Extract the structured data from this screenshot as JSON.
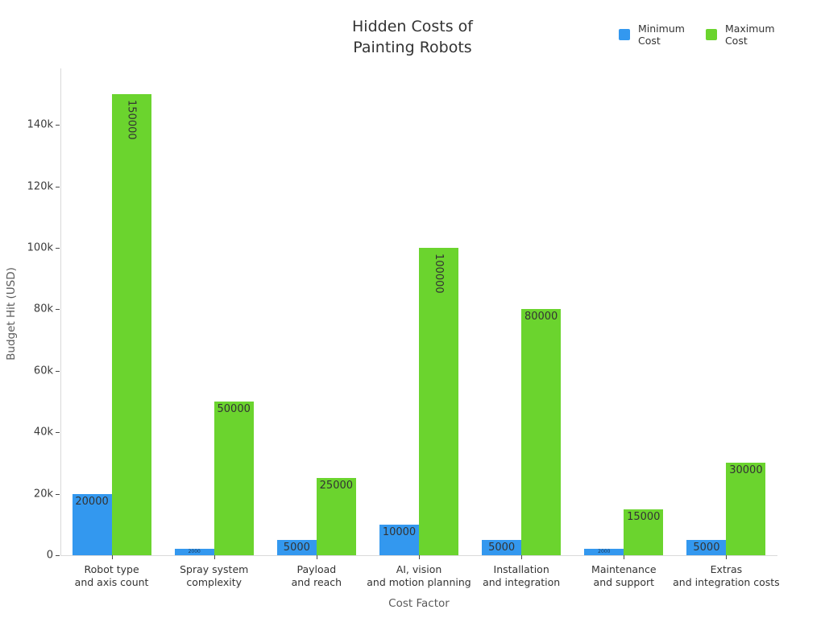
{
  "title": "Hidden Costs of\nPainting Robots",
  "legend": {
    "items": [
      {
        "legend_label": "Minimum\nCost",
        "color": "#3398ef"
      },
      {
        "legend_label": "Maximum\nCost",
        "color": "#6bd42e"
      }
    ]
  },
  "axes": {
    "y_title": "Budget Hit (USD)",
    "x_title": "Cost Factor",
    "y_ticks": [
      {
        "label": "0",
        "value": 0
      },
      {
        "label": "20k",
        "value": 20000
      },
      {
        "label": "40k",
        "value": 40000
      },
      {
        "label": "60k",
        "value": 60000
      },
      {
        "label": "80k",
        "value": 80000
      },
      {
        "label": "100k",
        "value": 100000
      },
      {
        "label": "120k",
        "value": 120000
      },
      {
        "label": "140k",
        "value": 140000
      }
    ]
  },
  "chart_data": {
    "type": "bar",
    "title": "Hidden Costs of Painting Robots",
    "xlabel": "Cost Factor",
    "ylabel": "Budget Hit (USD)",
    "categories": [
      "Robot type\nand axis count",
      "Spray system\ncomplexity",
      "Payload\nand reach",
      "AI, vision\nand motion planning",
      "Installation\nand integration",
      "Maintenance\nand support",
      "Extras\nand integration costs"
    ],
    "series": [
      {
        "name": "Minimum Cost",
        "color": "#3398ef",
        "values": [
          20000,
          2000,
          5000,
          10000,
          5000,
          2000,
          5000
        ]
      },
      {
        "name": "Maximum Cost",
        "color": "#6bd42e",
        "values": [
          150000,
          50000,
          25000,
          100000,
          80000,
          15000,
          30000
        ]
      }
    ],
    "bar_value_labels": true,
    "ylim": [
      0,
      158000
    ],
    "grid": false,
    "legend_position": "top-right"
  }
}
